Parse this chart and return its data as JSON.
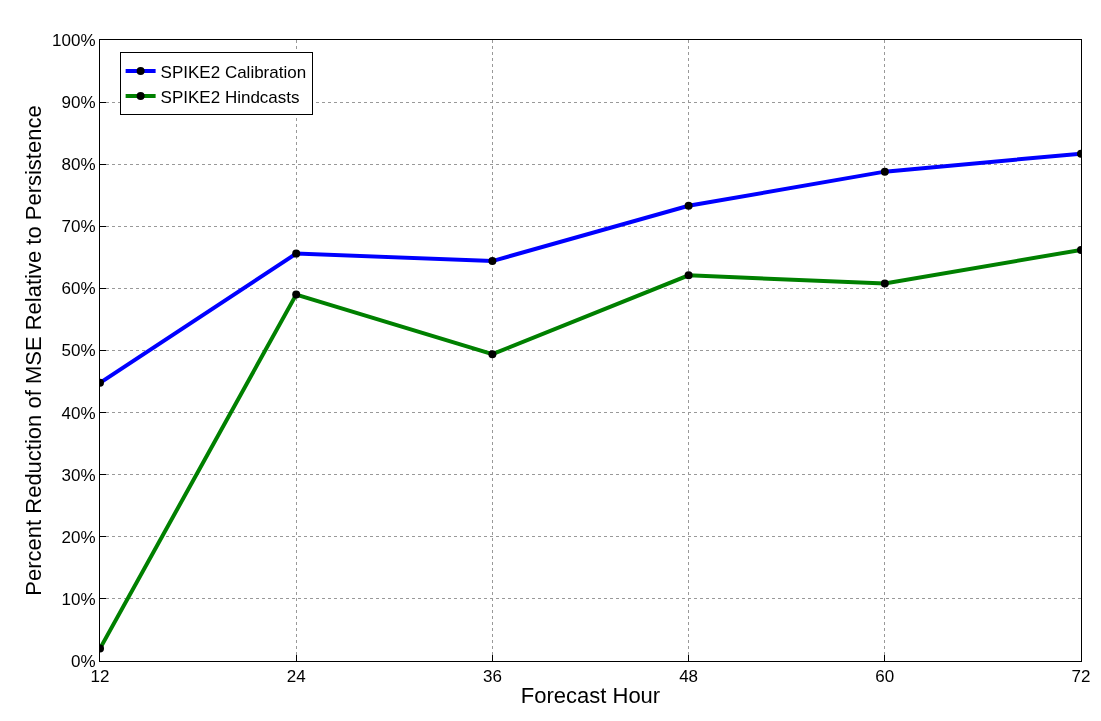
{
  "chart_data": {
    "type": "line",
    "xlabel": "Forecast Hour",
    "ylabel": "Percent Reduction of MSE Relative to Persistence",
    "x": [
      12,
      24,
      36,
      48,
      60,
      72
    ],
    "series": [
      {
        "name": "SPIKE2 Calibration",
        "color": "#0000ff",
        "values": [
          44.8,
          65.6,
          64.4,
          73.3,
          78.8,
          81.7
        ]
      },
      {
        "name": "SPIKE2 Hindcasts",
        "color": "#008000",
        "values": [
          2.0,
          59.0,
          49.4,
          62.1,
          60.8,
          66.2
        ]
      }
    ],
    "xlim": [
      12,
      72
    ],
    "xticks": [
      12,
      24,
      36,
      48,
      60,
      72
    ],
    "ylim": [
      0,
      100
    ],
    "yticks": [
      {
        "value": 0,
        "label": "0%"
      },
      {
        "value": 10,
        "label": "10%"
      },
      {
        "value": 20,
        "label": "20%"
      },
      {
        "value": 30,
        "label": "30%"
      },
      {
        "value": 40,
        "label": "40%"
      },
      {
        "value": 50,
        "label": "50%"
      },
      {
        "value": 60,
        "label": "60%"
      },
      {
        "value": 70,
        "label": "70%"
      },
      {
        "value": 80,
        "label": "80%"
      },
      {
        "value": 90,
        "label": "90%"
      },
      {
        "value": 100,
        "label": "100%"
      }
    ],
    "grid": true,
    "legend": "top left",
    "marker": "circle",
    "line_style": "solid"
  }
}
